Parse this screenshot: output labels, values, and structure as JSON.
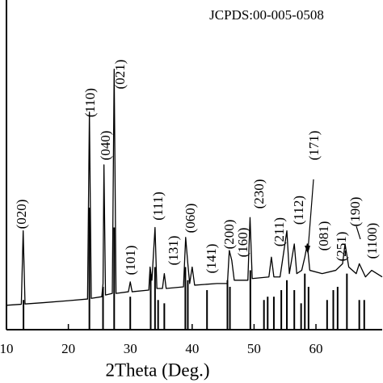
{
  "chart_data": {
    "type": "xrd",
    "reference": "JCPDS:00-005-0508",
    "xlabel": "2Theta (Deg.)",
    "xlim": [
      10,
      70.7
    ],
    "ylim": [
      0,
      100
    ],
    "xticks": [
      10,
      20,
      30,
      40,
      50,
      60
    ],
    "series": [
      {
        "type": "line",
        "color": "#000000",
        "x": [
          10,
          12.4,
          12.7,
          13.0,
          16,
          20,
          23.1,
          23.4,
          23.7,
          25.4,
          25.6,
          25.75,
          26.0,
          27.1,
          27.4,
          27.7,
          29.7,
          30.0,
          30.3,
          33.0,
          33.2,
          33.5,
          34.0,
          34.3,
          35.2,
          35.5,
          35.8,
          38.6,
          38.95,
          39.3,
          39.6,
          40.0,
          40.4,
          44,
          45.7,
          46.0,
          46.4,
          46.8,
          49.0,
          49.35,
          49.7,
          52.4,
          52.8,
          53.2,
          54.2,
          55.3,
          55.7,
          56.5,
          56.9,
          57.7,
          58.2,
          58.6,
          59.0,
          61,
          63.2,
          64.3,
          64.7,
          65.3,
          66.5,
          67.0,
          68,
          69,
          70.7
        ],
        "values": [
          7.4,
          7.7,
          30,
          7.8,
          8.2,
          8.8,
          9.3,
          66,
          9.5,
          10,
          14,
          50,
          10.5,
          11,
          79,
          11,
          11.5,
          14.5,
          11.5,
          12,
          19,
          15,
          31,
          12.5,
          12.5,
          17,
          12.5,
          13,
          28,
          20,
          14,
          19,
          13.5,
          14,
          14,
          24,
          21,
          15,
          15,
          34,
          15.5,
          16,
          22,
          16,
          16,
          30,
          17,
          26,
          17,
          18,
          22,
          26,
          18,
          17,
          18,
          20,
          26,
          19,
          17,
          20,
          16,
          18,
          16
        ]
      },
      {
        "type": "stick",
        "color": "#000000",
        "x": [
          12.75,
          23.4,
          25.6,
          27.4,
          30.0,
          33.3,
          34.0,
          34.5,
          35.5,
          38.9,
          39.3,
          42.4,
          45.7,
          46.1,
          49.4,
          51.6,
          52.2,
          53.2,
          54.4,
          55.3,
          56.5,
          57.6,
          58.2,
          58.8,
          61.8,
          62.8,
          63.5,
          65.0,
          67.0,
          67.8
        ],
        "values": [
          9,
          37,
          13,
          31,
          10,
          17,
          19,
          9,
          8,
          19,
          15,
          12,
          15,
          13,
          18,
          9,
          10,
          10,
          12,
          15,
          12,
          8,
          17,
          13,
          9,
          12,
          13,
          17,
          9,
          9
        ]
      }
    ],
    "annotations": [
      "(020)",
      "(110)",
      "(040)",
      "(021)",
      "(101)",
      "(111)",
      "(131)",
      "(060)",
      "(141)",
      "(200)",
      "(160)",
      "(230)",
      "(211)",
      "(112)",
      "(171)",
      "(081)",
      "(251)",
      "(190)",
      "(1100)"
    ]
  }
}
